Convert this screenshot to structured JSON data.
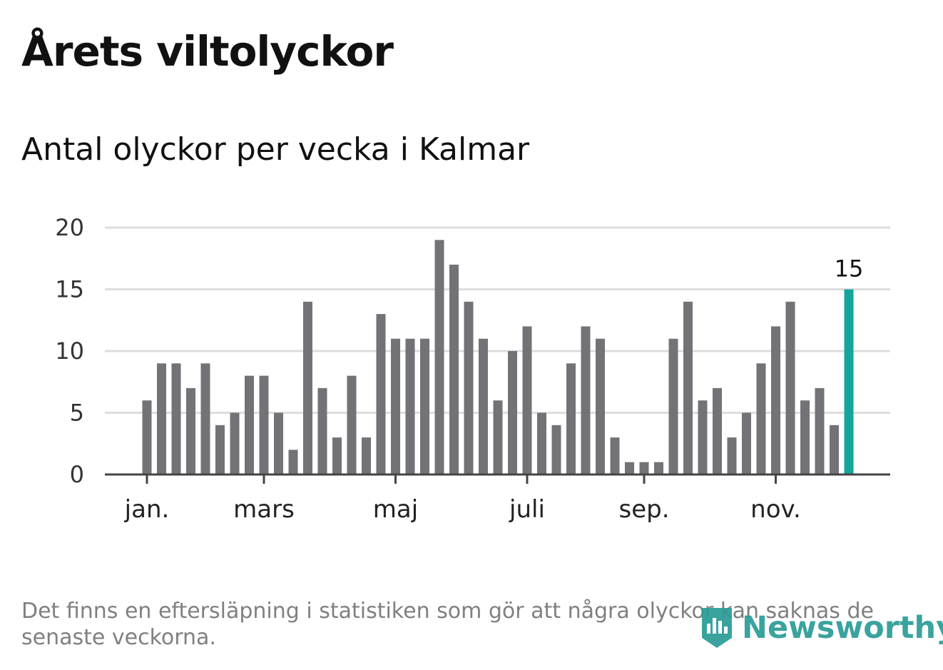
{
  "title": "Årets viltolyckor",
  "subtitle": "Antal olyckor per vecka i Kalmar",
  "footnote": "Det finns en eftersläpning i statistiken som gör att några olyckor kan saknas de senaste veckorna.",
  "brand": "Newsworthy",
  "colors": {
    "bar": "#737277",
    "highlight": "#15a59b",
    "grid": "#dddddd",
    "axis": "#444444",
    "brand": "#2a9c96"
  },
  "chart_data": {
    "type": "bar",
    "title": "Årets viltolyckor",
    "subtitle": "Antal olyckor per vecka i Kalmar",
    "xlabel": "",
    "ylabel": "",
    "ylim": [
      0,
      20
    ],
    "yticks": [
      0,
      5,
      10,
      15,
      20
    ],
    "grid": true,
    "week_range": [
      1,
      71
    ],
    "x_ticks": [
      {
        "label": "jan.",
        "week": 1
      },
      {
        "label": "mars",
        "week": 9
      },
      {
        "label": "maj",
        "week": 18
      },
      {
        "label": "juli",
        "week": 27
      },
      {
        "label": "sep.",
        "week": 35
      },
      {
        "label": "nov.",
        "week": 44
      }
    ],
    "values": [
      6,
      9,
      9,
      7,
      9,
      4,
      5,
      8,
      8,
      5,
      2,
      14,
      7,
      3,
      8,
      3,
      13,
      11,
      11,
      11,
      19,
      17,
      14,
      11,
      6,
      10,
      12,
      5,
      4,
      9,
      12,
      11,
      3,
      1,
      1,
      1,
      11,
      14,
      6,
      7,
      3,
      5,
      9,
      12,
      14,
      6,
      7,
      4,
      15
    ],
    "highlight_index": 48,
    "highlight_label": "15"
  }
}
